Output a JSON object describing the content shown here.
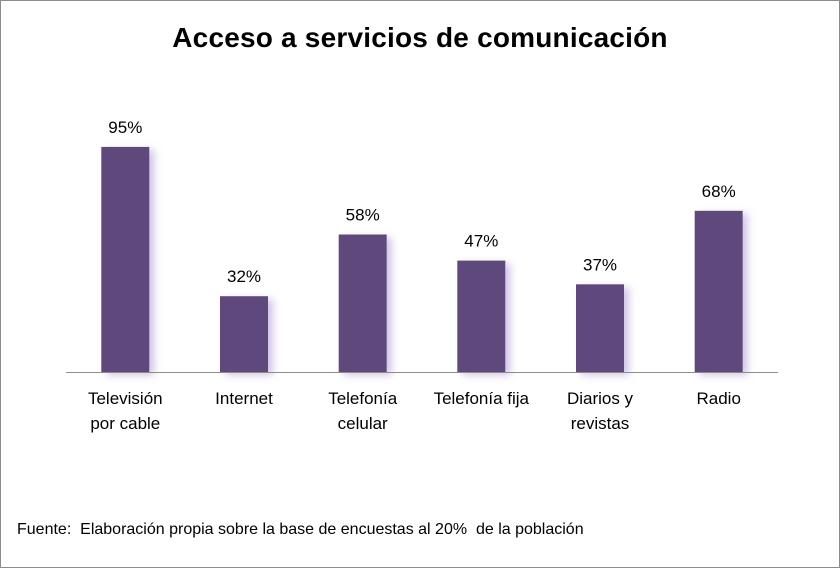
{
  "colors": {
    "bar": "#5e4a7c",
    "bar_shadow": "#c9b8e4",
    "axis": "#8c8c8c",
    "text": "#000000"
  },
  "chart_data": {
    "type": "bar",
    "title": "Acceso a servicios de comunicación",
    "categories": [
      [
        "Televisión",
        "por cable"
      ],
      [
        "Internet"
      ],
      [
        "Telefonía",
        "celular"
      ],
      [
        "Telefonía fija"
      ],
      [
        "Diarios y",
        "revistas"
      ],
      [
        "Radio"
      ]
    ],
    "values": [
      95,
      32,
      58,
      47,
      37,
      68
    ],
    "data_labels": [
      "95%",
      "32%",
      "58%",
      "47%",
      "37%",
      "68%"
    ],
    "unit": "%",
    "ylim": [
      0,
      100
    ],
    "grid": false,
    "legend": "none"
  },
  "footer": {
    "source": "Fuente:  Elaboración propia sobre la base de encuestas al 20%  de la población"
  }
}
